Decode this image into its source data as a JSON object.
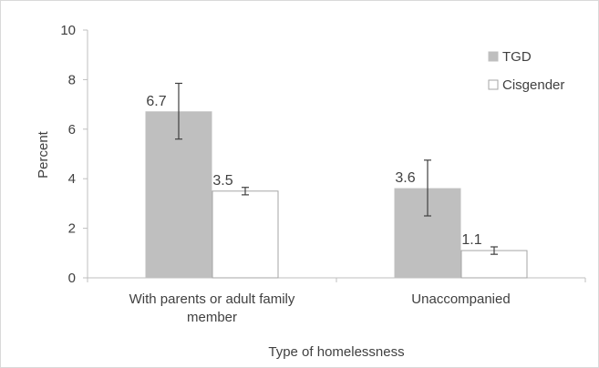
{
  "chart_data": {
    "type": "bar",
    "xlabel": "Type of homelessness",
    "ylabel": "Percent",
    "ylim": [
      0,
      10
    ],
    "yticks": [
      "0",
      "2",
      "4",
      "6",
      "8",
      "10"
    ],
    "categories": [
      [
        "With parents or adult family",
        "member"
      ],
      [
        "Unaccompanied"
      ]
    ],
    "series": [
      {
        "name": "TGD",
        "values": [
          6.7,
          3.6
        ],
        "value_labels": [
          "6.7",
          "3.6"
        ],
        "error_low": [
          5.6,
          2.5
        ],
        "error_high": [
          7.85,
          4.75
        ],
        "fill": "#bfbfbf",
        "stroke": "#bfbfbf"
      },
      {
        "name": "Cisgender",
        "values": [
          3.5,
          1.1
        ],
        "value_labels": [
          "3.5",
          "1.1"
        ],
        "error_low": [
          3.35,
          0.95
        ],
        "error_high": [
          3.65,
          1.25
        ],
        "fill": "#ffffff",
        "stroke": "#a6a6a6"
      }
    ],
    "legend_position": "top-right",
    "grid": false
  }
}
